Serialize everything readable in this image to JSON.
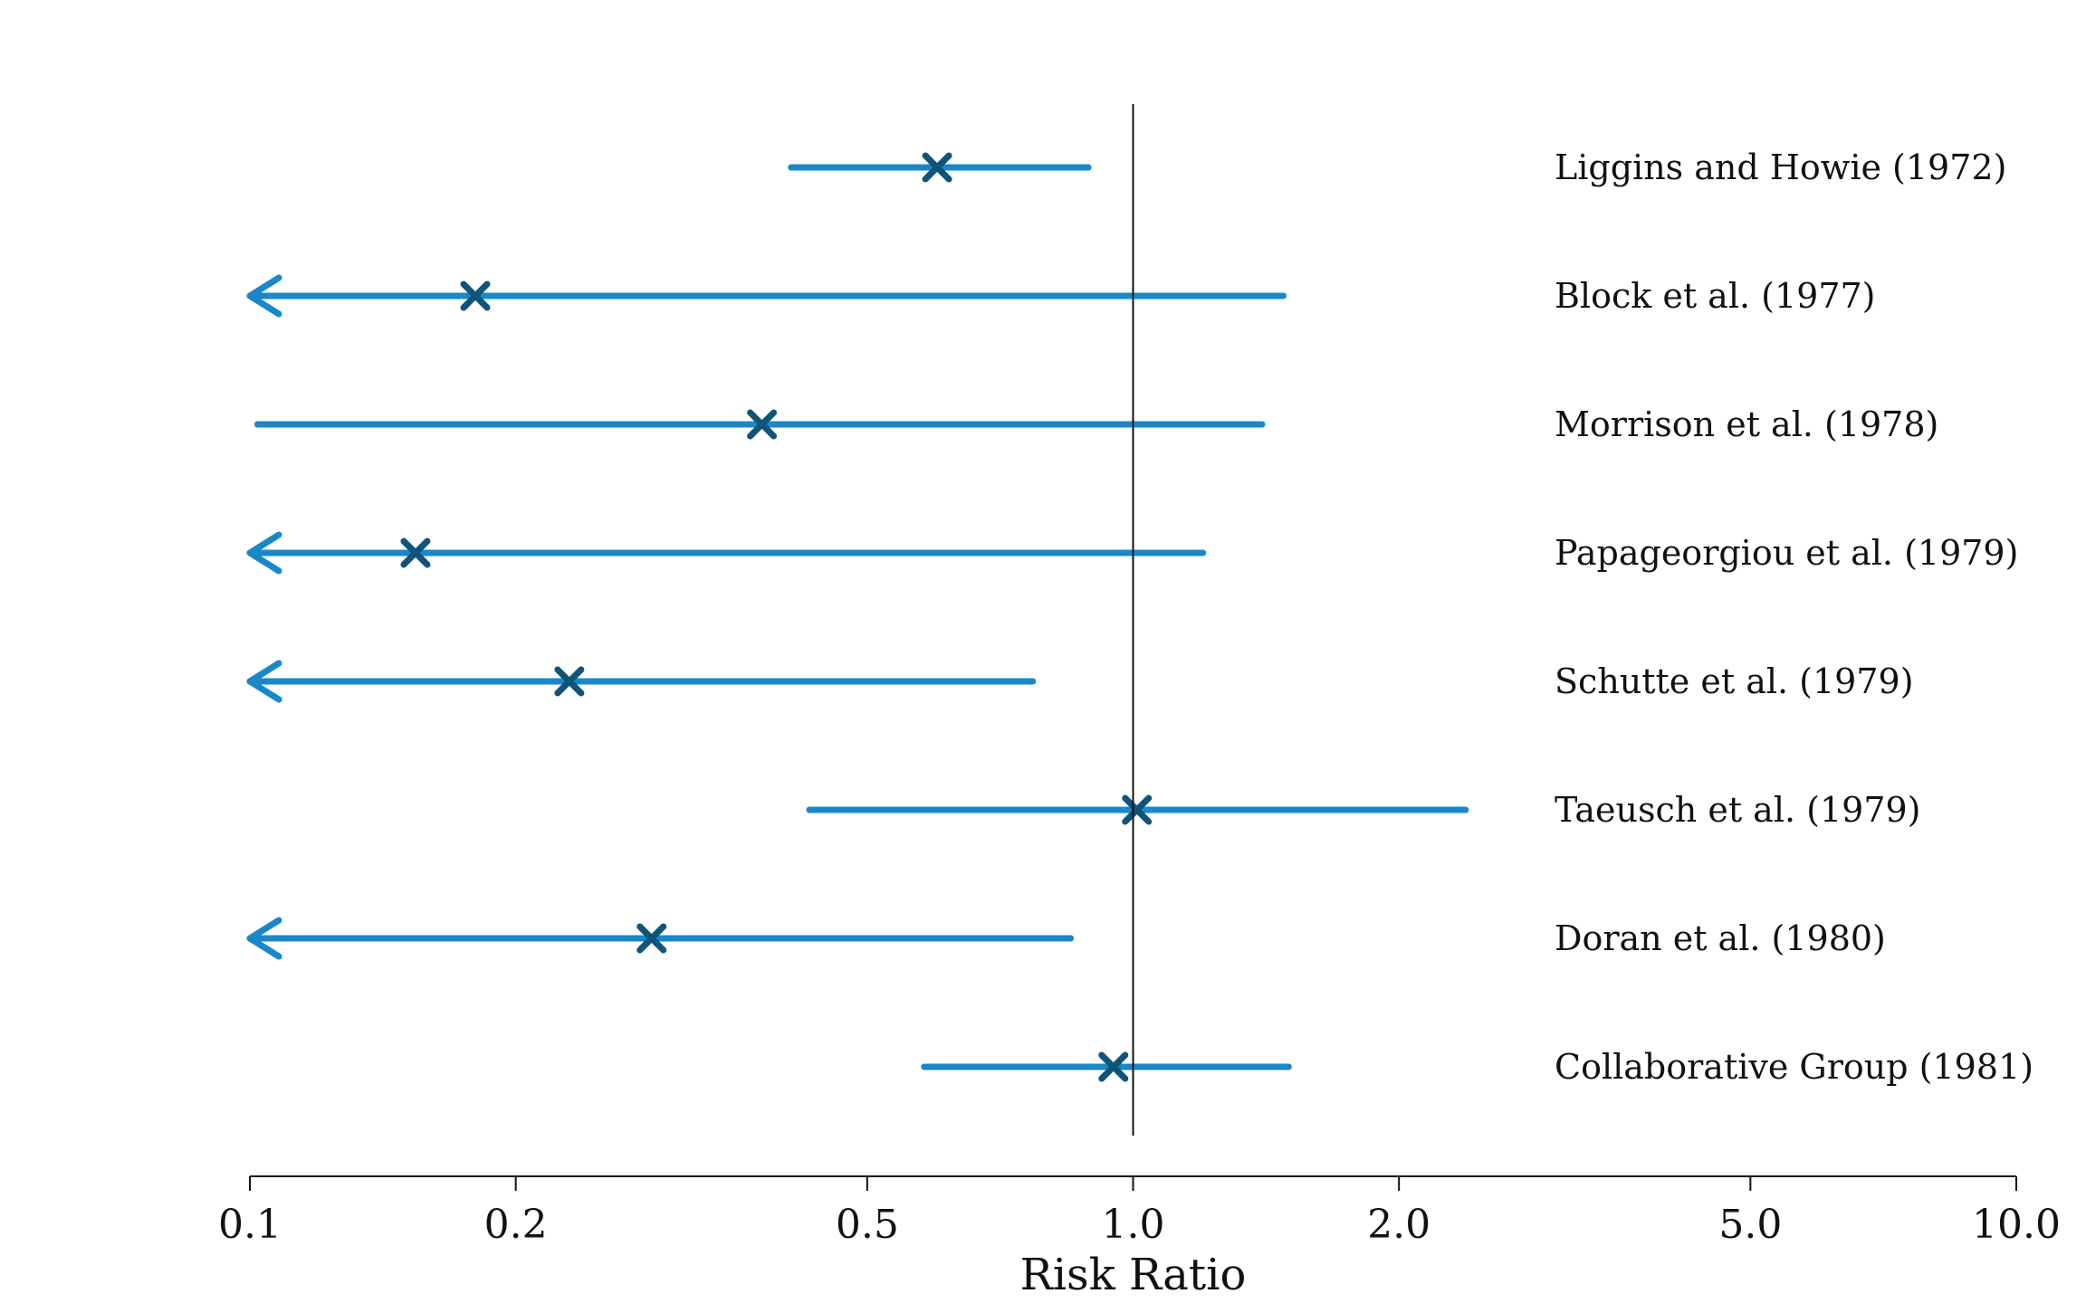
{
  "chart_data": {
    "type": "forest",
    "xlabel": "Risk Ratio",
    "xscale": "log",
    "xlim": [
      0.1,
      10.0
    ],
    "reference_line": 1.0,
    "ticks": [
      {
        "value": 0.1,
        "label": "0.1"
      },
      {
        "value": 0.2,
        "label": "0.2"
      },
      {
        "value": 0.5,
        "label": "0.5"
      },
      {
        "value": 1.0,
        "label": "1.0"
      },
      {
        "value": 2.0,
        "label": "2.0"
      },
      {
        "value": 5.0,
        "label": "5.0"
      },
      {
        "value": 10.0,
        "label": "10.0"
      }
    ],
    "studies": [
      {
        "label": "Liggins and Howie (1972)",
        "estimate": 0.6,
        "lower": 0.41,
        "upper": 0.89,
        "lower_truncated": false
      },
      {
        "label": "Block et al. (1977)",
        "estimate": 0.18,
        "lower": 0.1,
        "upper": 1.48,
        "lower_truncated": true
      },
      {
        "label": "Morrison et al. (1978)",
        "estimate": 0.38,
        "lower": 0.102,
        "upper": 1.4,
        "lower_truncated": false
      },
      {
        "label": "Papageorgiou et al. (1979)",
        "estimate": 0.154,
        "lower": 0.1,
        "upper": 1.2,
        "lower_truncated": true
      },
      {
        "label": "Schutte et al. (1979)",
        "estimate": 0.23,
        "lower": 0.1,
        "upper": 0.77,
        "lower_truncated": true
      },
      {
        "label": "Taeusch et al. (1979)",
        "estimate": 1.01,
        "lower": 0.43,
        "upper": 2.38,
        "lower_truncated": false
      },
      {
        "label": "Doran et al. (1980)",
        "estimate": 0.285,
        "lower": 0.1,
        "upper": 0.85,
        "lower_truncated": true
      },
      {
        "label": "Collaborative Group (1981)",
        "estimate": 0.95,
        "lower": 0.58,
        "upper": 1.5,
        "lower_truncated": false
      }
    ],
    "colors": {
      "interval": "#1a87c8",
      "estimate": "#0f5479",
      "reference": "#111111",
      "axis": "#111111"
    }
  }
}
